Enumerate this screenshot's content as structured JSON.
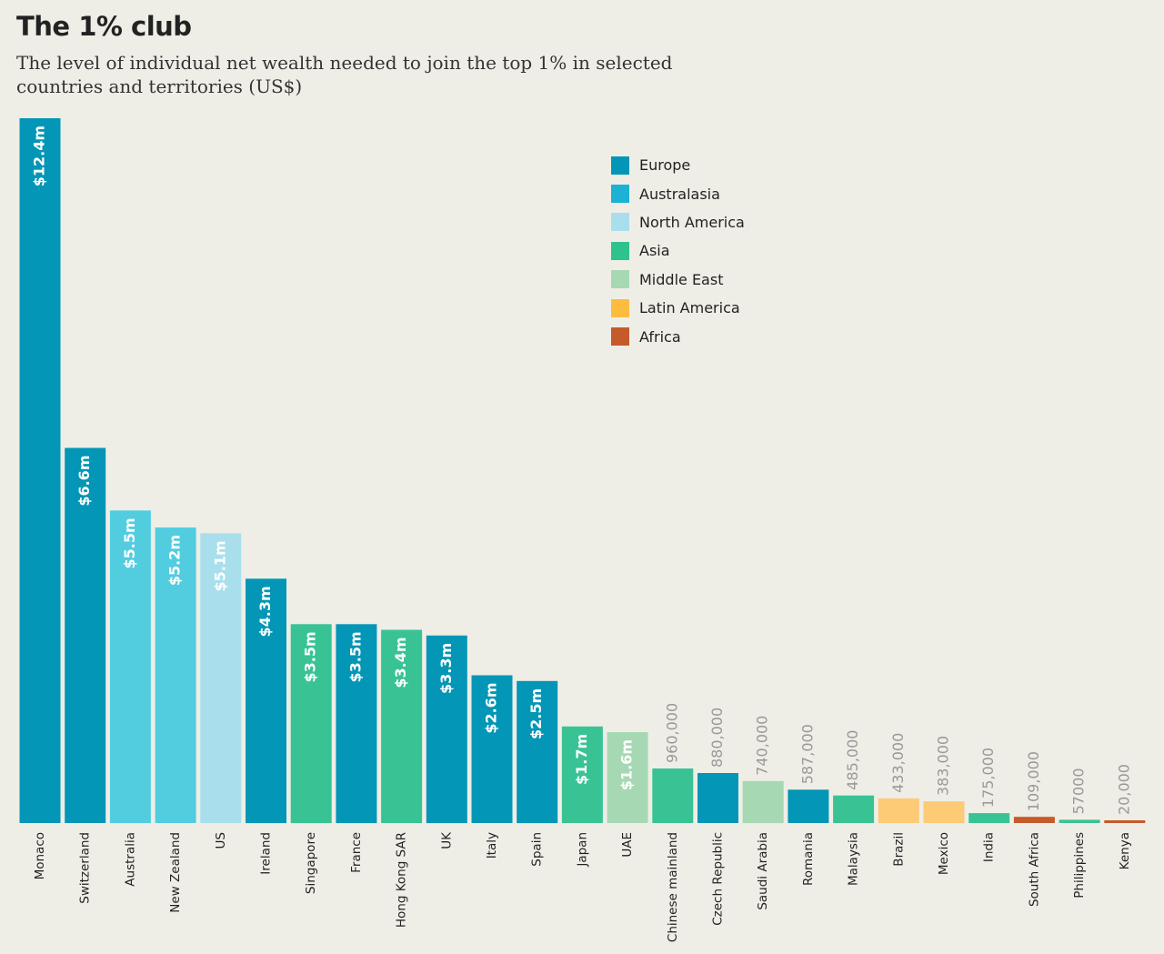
{
  "header": {
    "title": "The 1% club",
    "subtitle": "The level of individual net wealth needed to join the top 1% in selected countries and territories (US$)"
  },
  "legend": [
    {
      "label": "Europe",
      "color": "#0396b6"
    },
    {
      "label": "Australasia",
      "color": "#1bb2d3"
    },
    {
      "label": "North America",
      "color": "#a9dfec"
    },
    {
      "label": "Asia",
      "color": "#2ec28c"
    },
    {
      "label": "Middle East",
      "color": "#a6d9b3"
    },
    {
      "label": "Latin America",
      "color": "#fdbc40"
    },
    {
      "label": "Africa",
      "color": "#c55a2b"
    }
  ],
  "chart_data": {
    "type": "bar",
    "title": "The 1% club",
    "subtitle": "The level of individual net wealth needed to join the top 1% in selected countries and territories (US$)",
    "xlabel": "",
    "ylabel": "",
    "ylim": [
      0,
      12400000
    ],
    "grid": false,
    "legend_position": "top-right",
    "categories": [
      "Monaco",
      "Switzerland",
      "Australia",
      "New Zealand",
      "US",
      "Ireland",
      "Singapore",
      "France",
      "Hong Kong SAR",
      "UK",
      "Italy",
      "Spain",
      "Japan",
      "UAE",
      "Chinese mainland",
      "Czech Republic",
      "Saudi Arabia",
      "Romania",
      "Malaysia",
      "Brazil",
      "Mexico",
      "India",
      "South Africa",
      "Philippines",
      "Kenya"
    ],
    "values": [
      12400000,
      6600000,
      5500000,
      5200000,
      5100000,
      4300000,
      3500000,
      3500000,
      3400000,
      3300000,
      2600000,
      2500000,
      1700000,
      1600000,
      960000,
      880000,
      740000,
      587000,
      485000,
      433000,
      383000,
      175000,
      109000,
      57000,
      20000
    ],
    "value_labels": [
      "$12.4m",
      "$6.6m",
      "$5.5m",
      "$5.2m",
      "$5.1m",
      "$4.3m",
      "$3.5m",
      "$3.5m",
      "$3.4m",
      "$3.3m",
      "$2.6m",
      "$2.5m",
      "$1.7m",
      "$1.6m",
      "960,000",
      "880,000",
      "740,000",
      "587,000",
      "485,000",
      "433,000",
      "383,000",
      "175,000",
      "109,000",
      "57000",
      "20,000"
    ],
    "regions": [
      "Europe",
      "Europe",
      "Australasia",
      "Australasia",
      "North America",
      "Europe",
      "Asia",
      "Europe",
      "Asia",
      "Europe",
      "Europe",
      "Europe",
      "Asia",
      "Middle East",
      "Asia",
      "Europe",
      "Middle East",
      "Europe",
      "Asia",
      "Latin America",
      "Latin America",
      "Asia",
      "Africa",
      "Asia",
      "Africa"
    ],
    "bar_colors": [
      "#0396b6",
      "#0396b6",
      "#52cde0",
      "#52cde0",
      "#a9dfec",
      "#0396b6",
      "#39c394",
      "#0396b6",
      "#39c394",
      "#0396b6",
      "#0396b6",
      "#0396b6",
      "#39c394",
      "#a6d9b3",
      "#39c394",
      "#0396b6",
      "#a6d9b3",
      "#0396b6",
      "#39c394",
      "#fdca76",
      "#fdca76",
      "#39c394",
      "#c55a2b",
      "#39c394",
      "#c55a2b"
    ]
  }
}
